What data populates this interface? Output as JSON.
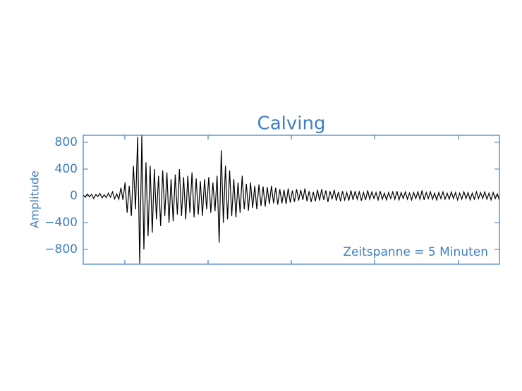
{
  "chart_data": {
    "type": "line",
    "title": "Calving",
    "y_label": "Amplitude",
    "annotation": "Zeitspanne = 5 Minuten",
    "color": "#000000",
    "axis_color": "#3f7fc0",
    "ylim": [
      -1020,
      905
    ],
    "yticks": [
      {
        "value": -800,
        "label": "−800"
      },
      {
        "value": -400,
        "label": "−400"
      },
      0,
      400,
      800
    ],
    "values": [
      10,
      -20,
      30,
      -15,
      25,
      -40,
      20,
      -10,
      35,
      -30,
      15,
      -25,
      40,
      -20,
      60,
      -45,
      30,
      -50,
      120,
      -60,
      200,
      -250,
      150,
      -300,
      450,
      -200,
      880,
      -1010,
      900,
      -800,
      500,
      -600,
      450,
      -550,
      400,
      -350,
      300,
      -450,
      380,
      -300,
      350,
      -400,
      250,
      -380,
      320,
      -280,
      400,
      -300,
      280,
      -350,
      300,
      -250,
      350,
      -320,
      260,
      -280,
      220,
      -300,
      250,
      -200,
      280,
      -250,
      200,
      -230,
      300,
      -700,
      680,
      -400,
      450,
      -350,
      380,
      -300,
      250,
      -320,
      200,
      -250,
      300,
      -200,
      180,
      -220,
      200,
      -180,
      150,
      -200,
      170,
      -150,
      140,
      -160,
      130,
      -120,
      150,
      -110,
      120,
      -130,
      100,
      -110,
      90,
      -120,
      110,
      -100,
      80,
      -90,
      100,
      -70,
      90,
      -60,
      110,
      -80,
      70,
      -90,
      60,
      -80,
      90,
      -70,
      100,
      -60,
      80,
      -90,
      70,
      -50,
      90,
      -70,
      60,
      -80,
      70,
      -60,
      50,
      -70,
      80,
      -60,
      70,
      -50,
      60,
      -70,
      50,
      -60,
      80,
      -50,
      60,
      -40,
      50,
      -60,
      70,
      -50,
      40,
      -60,
      50,
      -40,
      60,
      -50,
      70,
      -60,
      50,
      -40,
      60,
      -50,
      40,
      -60,
      50,
      -40,
      60,
      -50,
      80,
      -60,
      50,
      -40,
      60,
      -50,
      40,
      -60,
      50,
      -40,
      60,
      -50,
      40,
      -50,
      60,
      -40,
      50,
      -60,
      40,
      -50,
      60,
      -40,
      50,
      -60,
      40,
      -50,
      60,
      -40,
      50,
      -40,
      60,
      -50,
      40,
      -60,
      50,
      -40,
      30,
      -70
    ]
  }
}
